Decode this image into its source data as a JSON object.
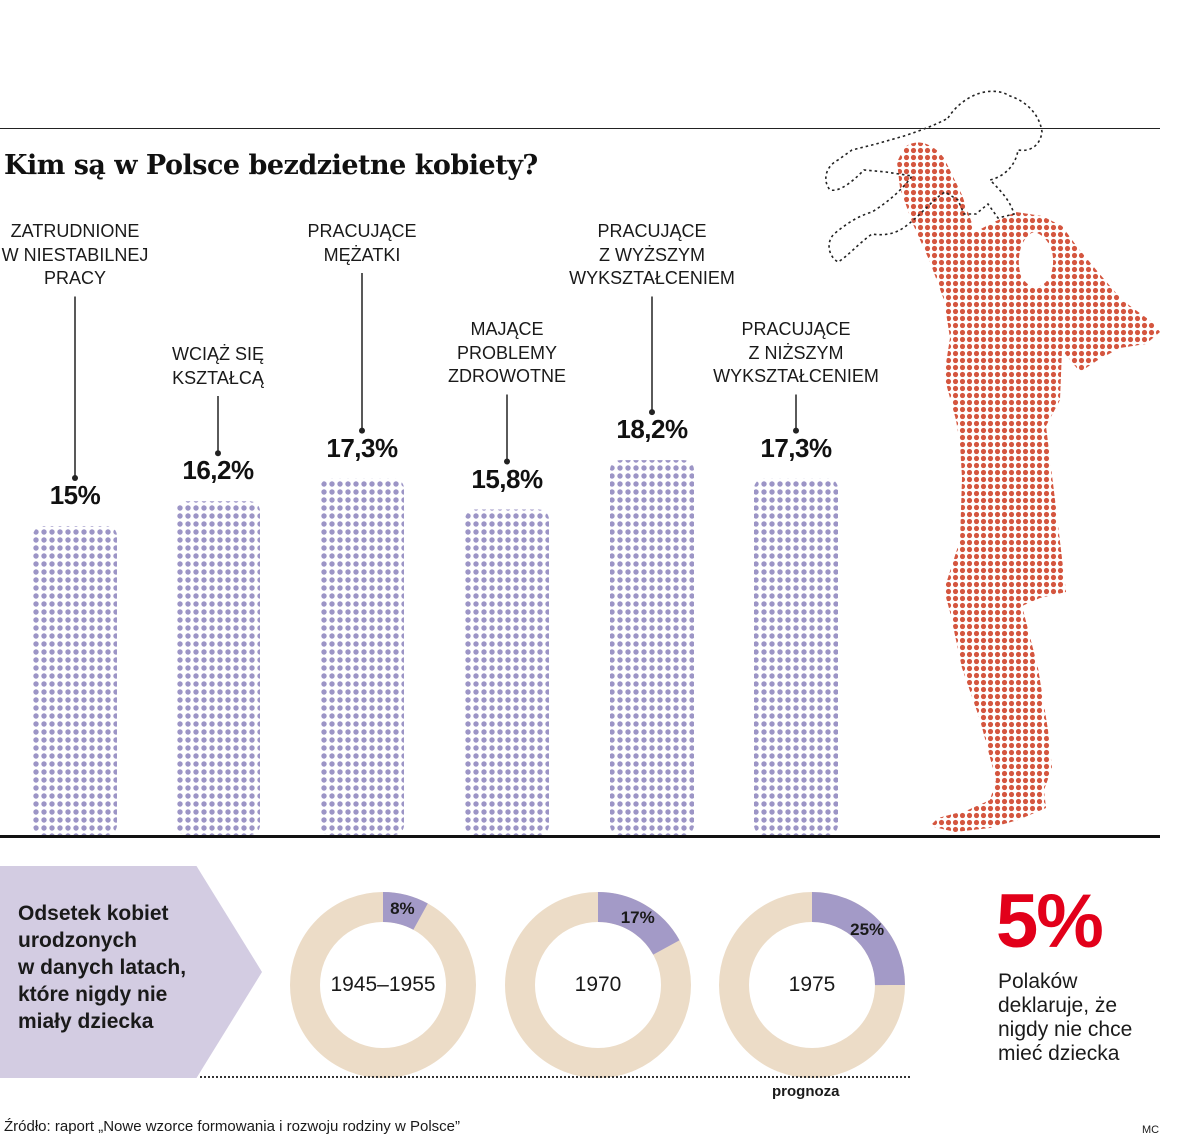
{
  "title": "Kim są w Polsce bezdzietne kobiety?",
  "colors": {
    "bar": "#9c95c6",
    "figure": "#d4563f",
    "donut_base": "#ecdcc7",
    "donut_fill": "#a39ac7",
    "accent": "#e2001a",
    "panel": "#d3cce2"
  },
  "chart_data": [
    {
      "type": "bar",
      "title": "Kim są w Polsce bezdzietne kobiety?",
      "categories": [
        "ZATRUDNIONE\nW NIESTABILNEJ\nPRACY",
        "WCIĄŻ SIĘ\nKSZTAŁCĄ",
        "PRACUJĄCE\nMĘŻATKI",
        "MAJĄCE\nPROBLEMY\nZDROWOTNE",
        "PRACUJĄCE\nZ WYŻSZYM\nWYKSZTAŁCENIEM",
        "PRACUJĄCE\nZ NIŻSZYM\nWYKSZTAŁCENIEM"
      ],
      "values": [
        15,
        16.2,
        17.3,
        15.8,
        18.2,
        17.3
      ],
      "value_labels": [
        "15%",
        "16,2%",
        "17,3%",
        "15,8%",
        "18,2%",
        "17,3%"
      ],
      "unit": "%",
      "grid": false
    },
    {
      "type": "pie",
      "title": "Odsetek kobiet\nurodzonych\nw danych latach,\nktóre nigdy nie\nmiały dziecka",
      "categories": [
        "1945–1955",
        "1970",
        "1975"
      ],
      "values": [
        8,
        17,
        25
      ],
      "value_labels": [
        "8%",
        "17%",
        "25%"
      ],
      "note": "prognoza"
    }
  ],
  "stat": {
    "value": "5%",
    "text": "Polaków\ndeklaruje, że\nnigdy nie chce\nmieć dziecka"
  },
  "source": "Źródło: raport „Nowe wzorce formowania i rozwoju rodziny w Polsce”",
  "author": "MC"
}
